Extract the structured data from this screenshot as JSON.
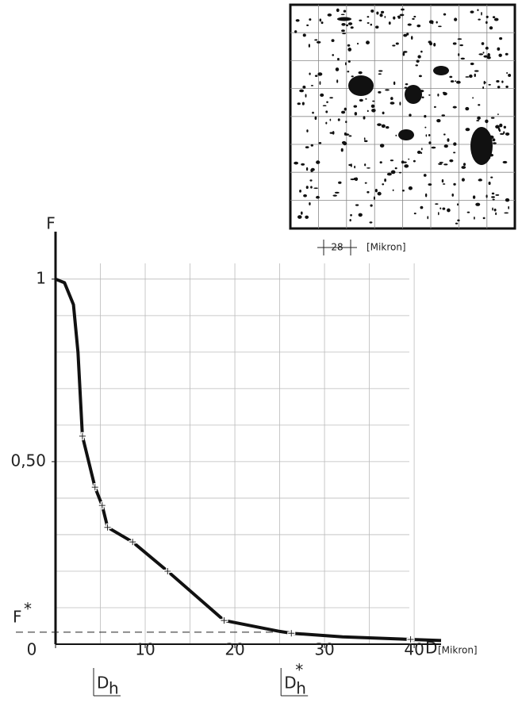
{
  "chart_data": {
    "type": "line",
    "y_label": "F",
    "x_label": "D",
    "x_unit": "[Mikron]",
    "x": [
      0,
      1,
      2,
      2.5,
      3,
      4.4,
      5.2,
      5.8,
      8.6,
      12.5,
      18.8,
      25,
      26.3,
      32,
      39.6,
      43
    ],
    "values": [
      1,
      0.99,
      0.93,
      0.8,
      0.57,
      0.43,
      0.38,
      0.32,
      0.28,
      0.2,
      0.065,
      0.035,
      0.03,
      0.02,
      0.013,
      0.01
    ],
    "markers": {
      "x": [
        3,
        4.4,
        5.2,
        5.8,
        8.6,
        12.5,
        18.8,
        26.3,
        39.6
      ],
      "values": [
        0.57,
        0.43,
        0.38,
        0.32,
        0.28,
        0.2,
        0.065,
        0.03,
        0.013
      ]
    },
    "color": "#111111",
    "xlim": [
      0,
      43
    ],
    "ylim": [
      0,
      1.13
    ],
    "xticks": [
      0,
      10,
      20,
      30,
      40
    ],
    "yticks": [
      {
        "value": 0.5,
        "label": "0,50"
      },
      1
    ],
    "xgrid": [
      5,
      10,
      15,
      20,
      25,
      30,
      35,
      40
    ],
    "ygrid": [
      0.1,
      0.2,
      0.3,
      0.4,
      0.5,
      0.6,
      0.7,
      0.8,
      0.9,
      1
    ],
    "grid": true,
    "fstar": {
      "label": "F",
      "sup": "*",
      "value": 0.033
    },
    "dh": {
      "label": "D",
      "sub": "h",
      "value": 4.6
    },
    "dhstar": {
      "label": "D",
      "sub": "h",
      "sup": "*",
      "value": 25.5
    },
    "inset": {
      "scale_label": "28",
      "unit": "[Mikron]"
    }
  }
}
